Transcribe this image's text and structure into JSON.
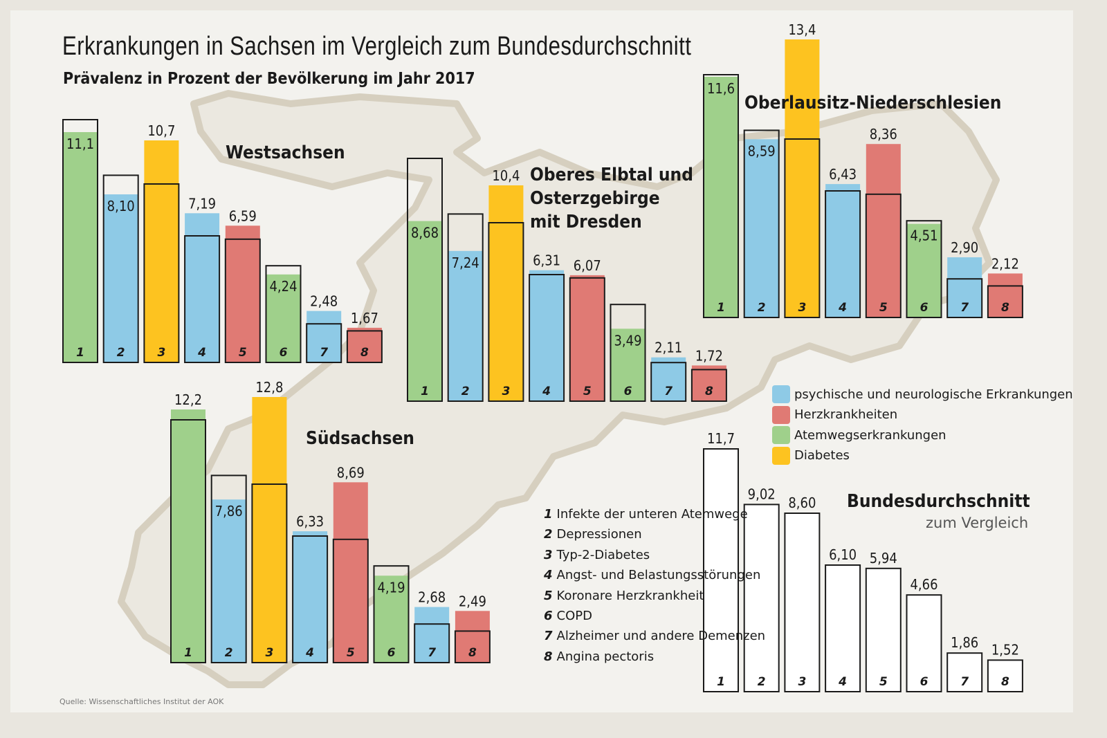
{
  "title": "Erkrankungen in Sachsen im Vergleich zum Bundesdurchschnitt",
  "subtitle": "Prävalenz in Prozent der Bevölkerung im Jahr 2017",
  "source": "Quelle: Wissenschaftliches Institut der AOK",
  "colors": {
    "psychisch": "#8ecae6",
    "herz": "#e07a74",
    "atemweg": "#9fd08b",
    "diabetes": "#fdc320",
    "outline": "#1a1a1a",
    "background": "#f3f2ee",
    "map": "#d9d3c5"
  },
  "legend": [
    {
      "label": "psychische und neurologische Erkrankungen",
      "group": "psychisch"
    },
    {
      "label": "Herzkrankheiten",
      "group": "herz"
    },
    {
      "label": "Atemwegserkrankungen",
      "group": "atemweg"
    },
    {
      "label": "Diabetes",
      "group": "diabetes"
    }
  ],
  "categories": [
    {
      "num": "1",
      "label": "Infekte der unteren Atemwege",
      "group": "atemweg"
    },
    {
      "num": "2",
      "label": "Depressionen",
      "group": "psychisch"
    },
    {
      "num": "3",
      "label": "Typ-2-Diabetes",
      "group": "diabetes"
    },
    {
      "num": "4",
      "label": "Angst- und Belastungsstörungen",
      "group": "psychisch"
    },
    {
      "num": "5",
      "label": "Koronare Herzkrankheit",
      "group": "herz"
    },
    {
      "num": "6",
      "label": "COPD",
      "group": "atemweg"
    },
    {
      "num": "7",
      "label": "Alzheimer und andere Demenzen",
      "group": "psychisch"
    },
    {
      "num": "8",
      "label": "Angina pectoris",
      "group": "herz"
    }
  ],
  "bund": {
    "title": "Bundesdurchschnitt",
    "subtitle": "zum Vergleich"
  },
  "chart_data": [
    {
      "type": "bar",
      "name": "Westsachsen",
      "categories": [
        "1",
        "2",
        "3",
        "4",
        "5",
        "6",
        "7",
        "8"
      ],
      "values": [
        11.1,
        8.1,
        10.7,
        7.19,
        6.59,
        4.24,
        2.48,
        1.67
      ],
      "labels": [
        "11,1",
        "8,10",
        "10,7",
        "7,19",
        "6,59",
        "4,24",
        "2,48",
        "1,67"
      ],
      "ylim": [
        0,
        14
      ]
    },
    {
      "type": "bar",
      "name": "Oberes Elbtal und Osterzgebirge mit Dresden",
      "name_lines": [
        "Oberes Elbtal und",
        "Osterzgebirge",
        "mit Dresden"
      ],
      "categories": [
        "1",
        "2",
        "3",
        "4",
        "5",
        "6",
        "7",
        "8"
      ],
      "values": [
        8.68,
        7.24,
        10.4,
        6.31,
        6.07,
        3.49,
        2.11,
        1.72
      ],
      "labels": [
        "8,68",
        "7,24",
        "10,4",
        "6,31",
        "6,07",
        "3,49",
        "2,11",
        "1,72"
      ],
      "ylim": [
        0,
        14
      ]
    },
    {
      "type": "bar",
      "name": "Oberlausitz-Niederschlesien",
      "categories": [
        "1",
        "2",
        "3",
        "4",
        "5",
        "6",
        "7",
        "8"
      ],
      "values": [
        11.6,
        8.59,
        13.4,
        6.43,
        8.36,
        4.51,
        2.9,
        2.12
      ],
      "labels": [
        "11,6",
        "8,59",
        "13,4",
        "6,43",
        "8,36",
        "4,51",
        "2,90",
        "2,12"
      ],
      "ylim": [
        0,
        14
      ]
    },
    {
      "type": "bar",
      "name": "Südsachsen",
      "categories": [
        "1",
        "2",
        "3",
        "4",
        "5",
        "6",
        "7",
        "8"
      ],
      "values": [
        12.2,
        7.86,
        12.8,
        6.33,
        8.69,
        4.19,
        2.68,
        2.49
      ],
      "labels": [
        "12,2",
        "7,86",
        "12,8",
        "6,33",
        "8,69",
        "4,19",
        "2,68",
        "2,49"
      ],
      "ylim": [
        0,
        14
      ]
    },
    {
      "type": "bar",
      "name": "Bundesdurchschnitt",
      "categories": [
        "1",
        "2",
        "3",
        "4",
        "5",
        "6",
        "7",
        "8"
      ],
      "values": [
        11.7,
        9.02,
        8.6,
        6.1,
        5.94,
        4.66,
        1.86,
        1.52
      ],
      "labels": [
        "11,7",
        "9,02",
        "8,60",
        "6,10",
        "5,94",
        "4,66",
        "1,86",
        "1,52"
      ],
      "ylim": [
        0,
        14
      ]
    }
  ]
}
